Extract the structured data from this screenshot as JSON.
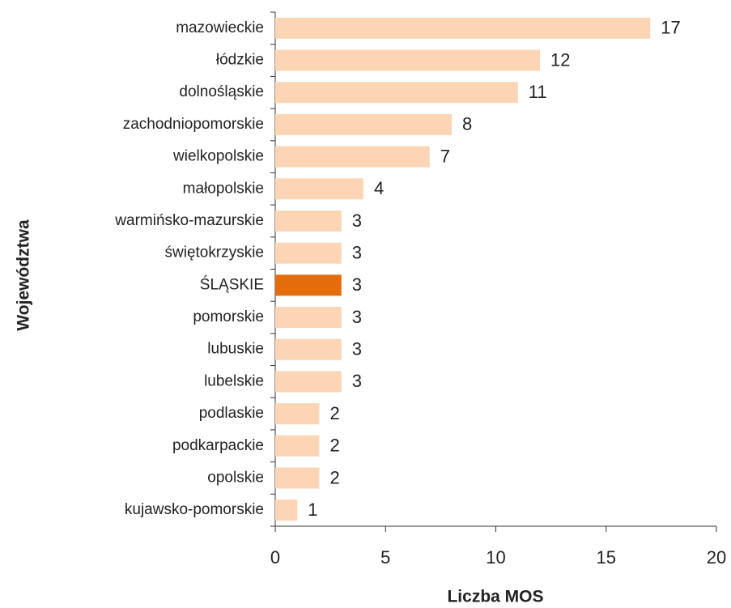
{
  "chart_data": {
    "type": "barh",
    "xlabel": "Liczba MOS",
    "ylabel": "Województwa",
    "categories": [
      "mazowieckie",
      "łódzkie",
      "dolnośląskie",
      "zachodniopomorskie",
      "wielkopolskie",
      "małopolskie",
      "warmińsko-mazurskie",
      "świętokrzyskie",
      "ŚLĄSKIE",
      "pomorskie",
      "lubuskie",
      "lubelskie",
      "podlaskie",
      "podkarpackie",
      "opolskie",
      "kujawsko-pomorskie"
    ],
    "values": [
      17,
      12,
      11,
      8,
      7,
      4,
      3,
      3,
      3,
      3,
      3,
      3,
      2,
      2,
      2,
      1
    ],
    "colors": [
      "#fcd5b4",
      "#fcd5b4",
      "#fcd5b4",
      "#fcd5b4",
      "#fcd5b4",
      "#fcd5b4",
      "#fcd5b4",
      "#fcd5b4",
      "#e46c0a",
      "#fcd5b4",
      "#fcd5b4",
      "#fcd5b4",
      "#fcd5b4",
      "#fcd5b4",
      "#fcd5b4",
      "#fcd5b4"
    ],
    "xlim": [
      0,
      20
    ],
    "xticks": [
      0,
      5,
      10,
      15,
      20
    ],
    "grid": false
  }
}
